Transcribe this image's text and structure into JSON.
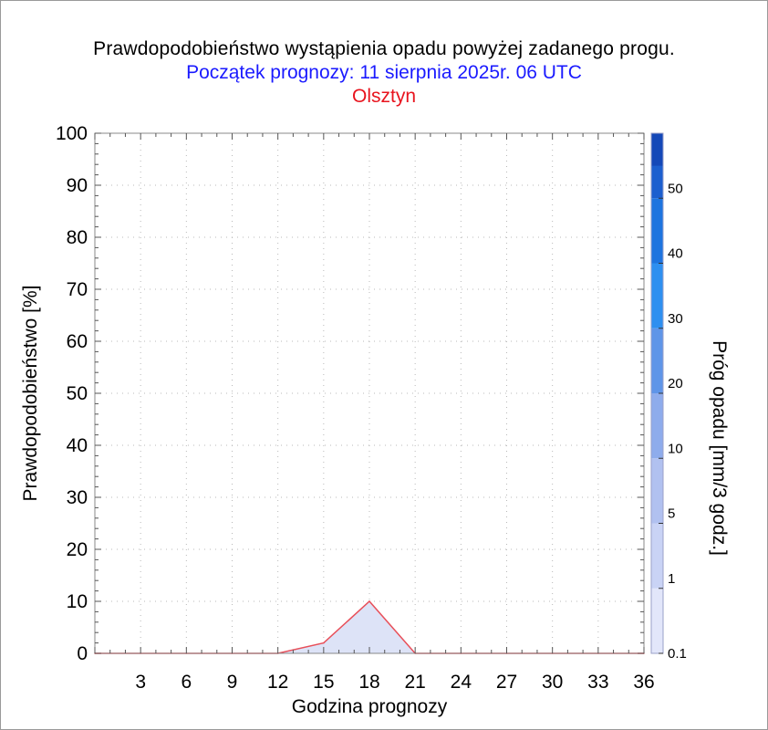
{
  "header": {
    "title": "Prawdopodobieństwo wystąpienia opadu powyżej zadanego progu.",
    "subtitle": "Początek prognozy: 11 sierpnia 2025r. 06 UTC",
    "location": "Olsztyn"
  },
  "colors": {
    "subtitle": "#1a1aff",
    "location": "#e8141e",
    "series_line": "#e8505a",
    "series_fill": "#dde3f7",
    "grid": "#b8b8b8"
  },
  "chart_data": {
    "type": "area",
    "title": "Prawdopodobieństwo wystąpienia opadu powyżej zadanego progu.",
    "xlabel": "Godzina prognozy",
    "ylabel": "Prawdopodobieństwo [%]",
    "xlim": [
      0,
      36
    ],
    "ylim": [
      0,
      100
    ],
    "x_ticks": [
      3,
      6,
      9,
      12,
      15,
      18,
      21,
      24,
      27,
      30,
      33,
      36
    ],
    "y_ticks": [
      0,
      10,
      20,
      30,
      40,
      50,
      60,
      70,
      80,
      90,
      100
    ],
    "grid": true,
    "series": [
      {
        "x": [
          0,
          3,
          6,
          9,
          12,
          15,
          18,
          21,
          24,
          27,
          30,
          33,
          36
        ],
        "values": [
          0,
          0,
          0,
          0,
          0,
          2,
          10,
          0,
          0,
          0,
          0,
          0,
          0
        ]
      }
    ],
    "colorbar": {
      "label": "Próg opadu [mm/3 godz.]",
      "tick_labels": [
        "0.1",
        "1",
        "5",
        "10",
        "20",
        "30",
        "40",
        "50"
      ],
      "colors": [
        "#e2e6fa",
        "#c9d3f5",
        "#b1c1f0",
        "#8eacec",
        "#5f95e8",
        "#2e8ff0",
        "#1e74df",
        "#1c5fcf",
        "#1448b8"
      ]
    }
  }
}
